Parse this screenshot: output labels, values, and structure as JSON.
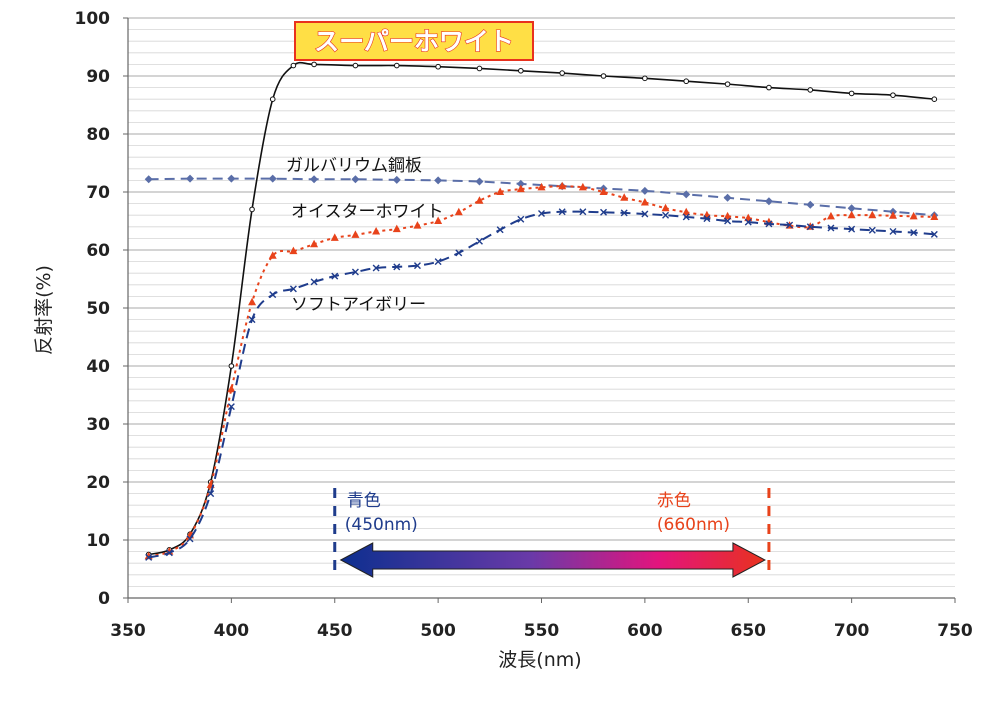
{
  "chart_data": {
    "type": "line",
    "title": "スーパーホワイト",
    "xlabel": "波長(nm)",
    "ylabel": "反射率(%)",
    "xlim": [
      350,
      750
    ],
    "ylim": [
      0,
      100
    ],
    "x_ticks": [
      "350",
      "400",
      "450",
      "500",
      "550",
      "600",
      "650",
      "700",
      "750"
    ],
    "y_ticks": [
      "0",
      "10",
      "20",
      "30",
      "40",
      "50",
      "60",
      "70",
      "80",
      "90",
      "100"
    ],
    "grid": true,
    "series": [
      {
        "name": "スーパーホワイト",
        "color": "#111111",
        "marker": "open-circle",
        "line": "solid",
        "x": [
          360,
          370,
          380,
          390,
          400,
          410,
          420,
          430,
          440,
          460,
          480,
          500,
          520,
          540,
          560,
          580,
          600,
          620,
          640,
          660,
          680,
          700,
          720,
          740
        ],
        "y": [
          7.5,
          8.3,
          11,
          20,
          40,
          67,
          86,
          91.8,
          92,
          91.8,
          91.8,
          91.6,
          91.3,
          90.9,
          90.5,
          90,
          89.6,
          89.1,
          88.6,
          88,
          87.6,
          87,
          86.7,
          86
        ]
      },
      {
        "name": "ガルバリウム鋼板",
        "color": "#5a6ea8",
        "marker": "diamond",
        "line": "dashed",
        "x": [
          360,
          380,
          400,
          420,
          440,
          460,
          480,
          500,
          520,
          540,
          560,
          580,
          600,
          620,
          640,
          660,
          680,
          700,
          720,
          740
        ],
        "y": [
          72.2,
          72.3,
          72.3,
          72.3,
          72.2,
          72.2,
          72.1,
          72,
          71.8,
          71.4,
          71,
          70.6,
          70.2,
          69.6,
          69,
          68.4,
          67.8,
          67.2,
          66.6,
          66
        ]
      },
      {
        "name": "オイスターホワイト",
        "color": "#e8431b",
        "marker": "triangle",
        "line": "dotted",
        "x": [
          360,
          370,
          380,
          390,
          400,
          410,
          420,
          430,
          440,
          450,
          460,
          470,
          480,
          490,
          500,
          510,
          520,
          530,
          540,
          550,
          560,
          570,
          580,
          590,
          600,
          610,
          620,
          630,
          640,
          650,
          660,
          670,
          680,
          690,
          700,
          710,
          720,
          730,
          740
        ],
        "y": [
          7.2,
          8,
          10.8,
          19.5,
          36,
          51,
          59,
          59.8,
          61,
          62.1,
          62.6,
          63.2,
          63.6,
          64.2,
          65,
          66.5,
          68.5,
          70,
          70.5,
          70.8,
          71,
          70.8,
          70,
          69,
          68.2,
          67.2,
          66.5,
          66,
          65.8,
          65.5,
          64.8,
          64.2,
          64,
          65.8,
          66,
          66,
          65.9,
          65.8,
          65.7
        ]
      },
      {
        "name": "ソフトアイボリー",
        "color": "#1f3c8c",
        "marker": "x",
        "line": "dashed",
        "x": [
          360,
          370,
          380,
          390,
          400,
          410,
          420,
          430,
          440,
          450,
          460,
          470,
          480,
          490,
          500,
          510,
          520,
          530,
          540,
          550,
          560,
          570,
          580,
          590,
          600,
          610,
          620,
          630,
          640,
          650,
          660,
          670,
          680,
          690,
          700,
          710,
          720,
          730,
          740
        ],
        "y": [
          7,
          7.8,
          10.2,
          18,
          33,
          48,
          52.3,
          53.3,
          54.5,
          55.5,
          56.2,
          56.9,
          57.1,
          57.3,
          58,
          59.5,
          61.5,
          63.5,
          65.3,
          66.3,
          66.6,
          66.6,
          66.5,
          66.4,
          66.2,
          66,
          65.7,
          65.4,
          65,
          64.8,
          64.5,
          64.3,
          64,
          63.8,
          63.6,
          63.4,
          63.2,
          63,
          62.7
        ]
      }
    ],
    "annotations": {
      "galvalume": "ガルバリウム鋼板",
      "oyster": "オイスターホワイト",
      "ivory": "ソフトアイボリー",
      "blue_label": "青色",
      "blue_nm": "(450nm)",
      "red_label": "赤色",
      "red_nm": "(660nm)",
      "blue_x": 450,
      "red_x": 660
    }
  },
  "colors": {
    "title_box_fill": "#ffdf45",
    "title_box_stroke": "#e8321e",
    "title_text": "#ffffff",
    "title_outline": "#e8321e",
    "blue_marker": "#1f3c8c",
    "red_marker": "#e8431b",
    "arrow_start": "#0d2f8f",
    "arrow_mid": "#8a2fa8",
    "arrow_pink": "#e3147d",
    "arrow_end": "#e8321e",
    "grid": "#c8c8c8"
  }
}
